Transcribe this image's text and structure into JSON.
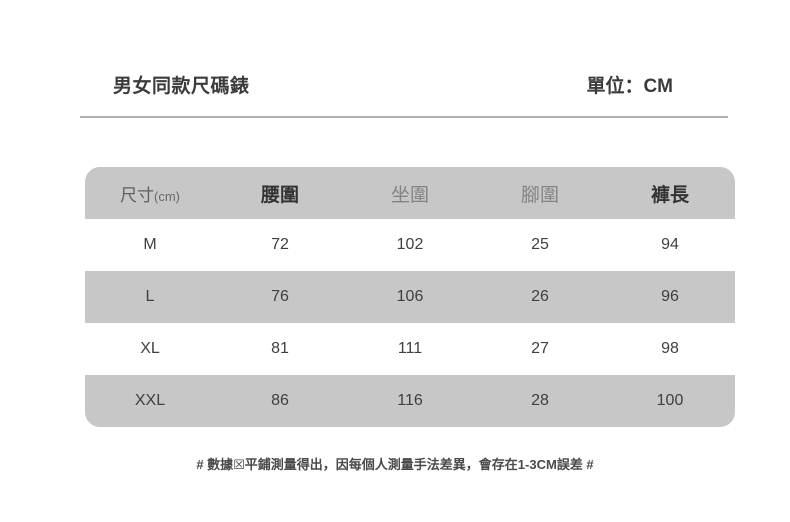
{
  "page": {
    "title": "男女同款尺碼錶",
    "unit_label": "單位：CM",
    "footnote": "# 數據☒平鋪測量得出，因每個人測量手法差異，會存在1-3CM誤差 #"
  },
  "table": {
    "header": {
      "size_label": "尺寸",
      "size_unit": "(cm)",
      "waist": "腰圍",
      "hip": "坐圍",
      "leg_opening": "腳圍",
      "pant_length": "褲長"
    }
  },
  "chart_data": {
    "type": "table",
    "title": "男女同款尺碼錶",
    "unit": "CM",
    "columns": [
      "尺寸(cm)",
      "腰圍",
      "坐圍",
      "腳圍",
      "褲長"
    ],
    "rows": [
      [
        "M",
        72,
        102,
        25,
        94
      ],
      [
        "L",
        76,
        106,
        26,
        96
      ],
      [
        "XL",
        81,
        111,
        27,
        98
      ],
      [
        "XXL",
        86,
        116,
        28,
        100
      ]
    ],
    "note": "# 數據☒平鋪測量得出，因每個人測量手法差異，會存在1-3CM誤差 #"
  },
  "colors": {
    "table_row_gray": "#c7c7c7",
    "header_emphasis_text": "#333333",
    "header_muted_text": "#848484",
    "body_text": "#3f3f3f",
    "divider": "#b2b2b2"
  }
}
